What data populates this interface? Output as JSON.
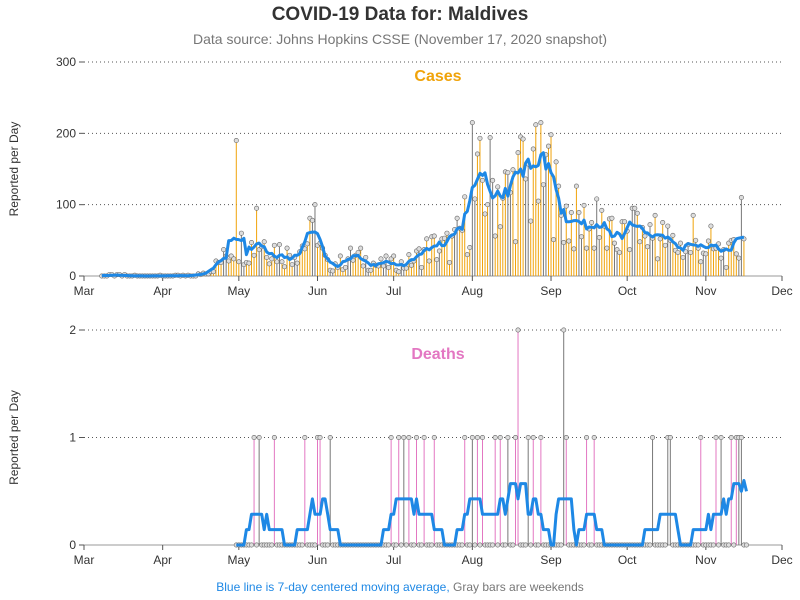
{
  "header": {
    "title": "COVID-19 Data for: Maldives",
    "subtitle": "Data source: Johns Hopkins CSSE (November 17, 2020 snapshot)"
  },
  "footnote": {
    "blue_text": "Blue line is 7-day centered moving average,",
    "gray_text": "Gray bars are weekends"
  },
  "colors": {
    "cases": "#f0a30a",
    "deaths": "#e377c2",
    "moving_average": "#1e88e5",
    "weekend": "#777777"
  },
  "chart_data": [
    {
      "type": "bar",
      "title": "Cases",
      "ylabel": "Reported per Day",
      "xlabel": "",
      "x_start": "2020-03-01",
      "x_end": "2020-12-01",
      "ylim": [
        0,
        300
      ],
      "yticks": [
        0,
        100,
        200,
        300
      ],
      "x_tick_labels": [
        "Mar",
        "Apr",
        "May",
        "Jun",
        "Jul",
        "Aug",
        "Sep",
        "Oct",
        "Nov",
        "Dec"
      ],
      "grid": true,
      "markers": "circle",
      "anchors": [
        [
          "2020-03-08",
          2
        ],
        [
          "2020-03-20",
          1
        ],
        [
          "2020-04-10",
          1
        ],
        [
          "2020-04-15",
          2
        ],
        [
          "2020-04-20",
          8
        ],
        [
          "2020-04-25",
          25
        ],
        [
          "2020-04-30",
          45
        ],
        [
          "2020-05-05",
          40
        ],
        [
          "2020-05-10",
          50
        ],
        [
          "2020-05-15",
          38
        ],
        [
          "2020-05-20",
          30
        ],
        [
          "2020-05-25",
          40
        ],
        [
          "2020-05-30",
          55
        ],
        [
          "2020-06-05",
          15
        ],
        [
          "2020-06-10",
          18
        ],
        [
          "2020-06-15",
          28
        ],
        [
          "2020-06-20",
          22
        ],
        [
          "2020-06-25",
          15
        ],
        [
          "2020-06-30",
          18
        ],
        [
          "2020-07-05",
          15
        ],
        [
          "2020-07-10",
          25
        ],
        [
          "2020-07-15",
          40
        ],
        [
          "2020-07-20",
          38
        ],
        [
          "2020-07-25",
          45
        ],
        [
          "2020-07-30",
          80
        ],
        [
          "2020-08-05",
          130
        ],
        [
          "2020-08-10",
          125
        ],
        [
          "2020-08-15",
          110
        ],
        [
          "2020-08-20",
          140
        ],
        [
          "2020-08-25",
          130
        ],
        [
          "2020-08-30",
          135
        ],
        [
          "2020-09-05",
          90
        ],
        [
          "2020-09-10",
          80
        ],
        [
          "2020-09-15",
          70
        ],
        [
          "2020-09-20",
          65
        ],
        [
          "2020-09-25",
          50
        ],
        [
          "2020-09-30",
          55
        ],
        [
          "2020-10-05",
          60
        ],
        [
          "2020-10-10",
          55
        ],
        [
          "2020-10-15",
          52
        ],
        [
          "2020-10-20",
          42
        ],
        [
          "2020-10-25",
          38
        ],
        [
          "2020-10-30",
          40
        ],
        [
          "2020-11-05",
          35
        ],
        [
          "2020-11-10",
          28
        ],
        [
          "2020-11-14",
          42
        ],
        [
          "2020-11-16",
          45
        ]
      ],
      "spikes": [
        [
          "2020-04-30",
          190
        ],
        [
          "2020-05-08",
          95
        ],
        [
          "2020-05-31",
          100
        ],
        [
          "2020-08-01",
          215
        ],
        [
          "2020-08-20",
          195
        ],
        [
          "2020-08-25",
          178
        ],
        [
          "2020-09-01",
          198
        ],
        [
          "2020-09-19",
          108
        ],
        [
          "2020-10-04",
          95
        ],
        [
          "2020-10-12",
          85
        ],
        [
          "2020-10-27",
          85
        ],
        [
          "2020-11-03",
          70
        ],
        [
          "2020-11-15",
          110
        ]
      ]
    },
    {
      "type": "bar",
      "title": "Deaths",
      "ylabel": "Reported per Day",
      "xlabel": "",
      "x_start": "2020-03-01",
      "x_end": "2020-12-01",
      "ylim": [
        0,
        2
      ],
      "yticks": [
        0,
        1,
        2
      ],
      "x_tick_labels": [
        "Mar",
        "Apr",
        "May",
        "Jun",
        "Jul",
        "Aug",
        "Sep",
        "Oct",
        "Nov",
        "Dec"
      ],
      "grid": true,
      "markers": "circle",
      "marker_range": [
        "2020-04-30",
        "2020-11-17"
      ],
      "death_days": [
        "2020-05-07",
        "2020-05-09",
        "2020-05-15",
        "2020-05-27",
        "2020-06-01",
        "2020-06-02",
        "2020-06-06",
        "2020-06-30",
        "2020-07-03",
        "2020-07-05",
        "2020-07-07",
        "2020-07-10",
        "2020-07-13",
        "2020-07-17",
        "2020-07-29",
        "2020-08-01",
        "2020-08-03",
        "2020-08-05",
        "2020-08-10",
        "2020-08-12",
        "2020-08-15",
        "2020-08-18",
        "2020-08-23",
        "2020-08-25",
        "2020-08-28",
        "2020-09-07",
        "2020-09-15",
        "2020-09-18",
        "2020-10-11",
        "2020-10-17",
        "2020-10-18",
        "2020-10-30",
        "2020-11-05",
        "2020-11-07",
        "2020-11-11",
        "2020-11-13",
        "2020-11-14",
        "2020-11-15"
      ],
      "double_death_days": [
        "2020-08-19",
        "2020-09-06"
      ]
    }
  ]
}
